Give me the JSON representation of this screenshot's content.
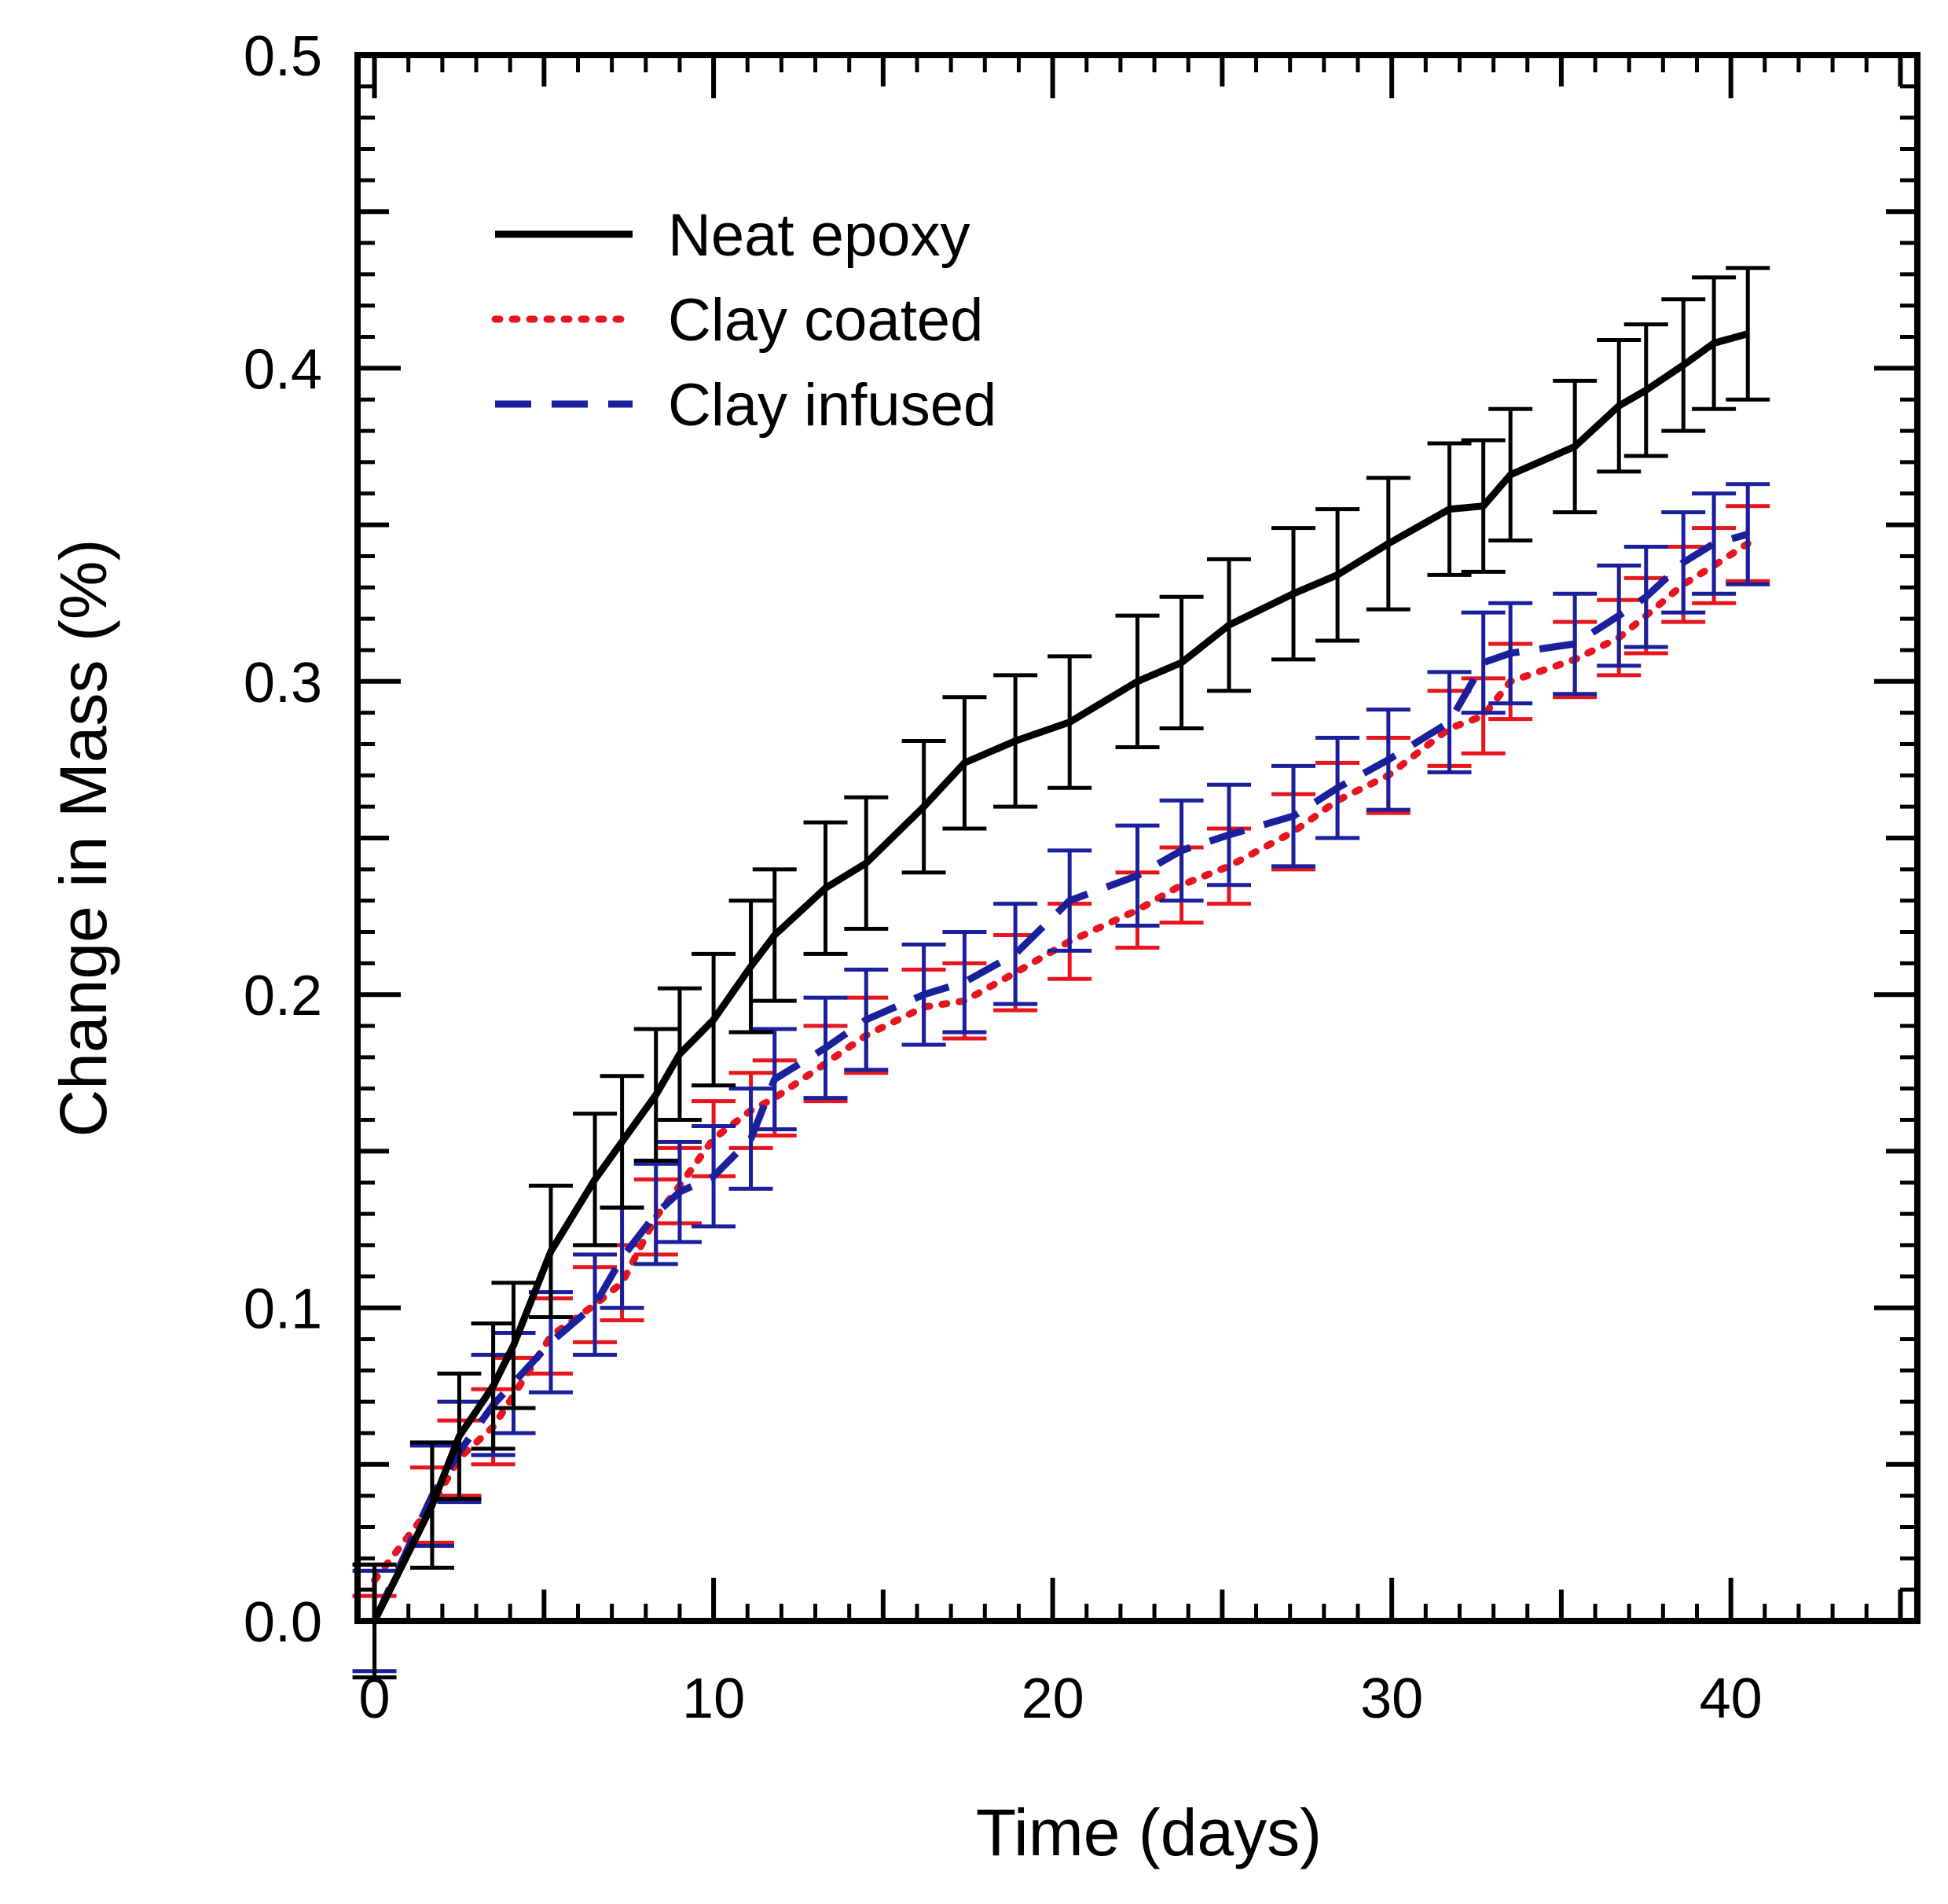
{
  "chart_data": {
    "type": "line",
    "xlabel": "Time (days)",
    "ylabel": "Change in Mass (%)",
    "xlim": [
      -0.5,
      45.5
    ],
    "ylim": [
      0,
      0.5
    ],
    "x_ticks": [
      0,
      10,
      20,
      30,
      40
    ],
    "x_tick_labels": [
      "0",
      "10",
      "20",
      "30",
      "40"
    ],
    "y_ticks": [
      0,
      0.1,
      0.2,
      0.3,
      0.4,
      0.5
    ],
    "y_tick_labels": [
      "0.0",
      "0.1",
      "0.2",
      "0.3",
      "0.4",
      "0.5"
    ],
    "grid": false,
    "legend_position": "top-left",
    "series": [
      {
        "name": "Neat epoxy",
        "color": "#000000",
        "style": "solid",
        "points": [
          {
            "x": 0,
            "y": 0,
            "err": 0.018
          },
          {
            "x": 1.7,
            "y": 0.037,
            "err": 0.02
          },
          {
            "x": 2.5,
            "y": 0.059,
            "err": 0.02
          },
          {
            "x": 3.5,
            "y": 0.075,
            "err": 0.02
          },
          {
            "x": 4.1,
            "y": 0.088,
            "err": 0.02
          },
          {
            "x": 5.2,
            "y": 0.118,
            "err": 0.021
          },
          {
            "x": 6.5,
            "y": 0.141,
            "err": 0.021
          },
          {
            "x": 7.3,
            "y": 0.153,
            "err": 0.021
          },
          {
            "x": 8.3,
            "y": 0.168,
            "err": 0.021
          },
          {
            "x": 9.0,
            "y": 0.181,
            "err": 0.021
          },
          {
            "x": 10.0,
            "y": 0.192,
            "err": 0.021
          },
          {
            "x": 11.1,
            "y": 0.209,
            "err": 0.021
          },
          {
            "x": 11.8,
            "y": 0.219,
            "err": 0.021
          },
          {
            "x": 13.3,
            "y": 0.234,
            "err": 0.021
          },
          {
            "x": 14.5,
            "y": 0.242,
            "err": 0.021
          },
          {
            "x": 16.2,
            "y": 0.26,
            "err": 0.021
          },
          {
            "x": 17.4,
            "y": 0.274,
            "err": 0.021
          },
          {
            "x": 18.9,
            "y": 0.281,
            "err": 0.021
          },
          {
            "x": 20.5,
            "y": 0.287,
            "err": 0.021
          },
          {
            "x": 22.5,
            "y": 0.3,
            "err": 0.021
          },
          {
            "x": 23.8,
            "y": 0.306,
            "err": 0.021
          },
          {
            "x": 25.2,
            "y": 0.318,
            "err": 0.021
          },
          {
            "x": 27.1,
            "y": 0.328,
            "err": 0.021
          },
          {
            "x": 28.4,
            "y": 0.334,
            "err": 0.021
          },
          {
            "x": 29.9,
            "y": 0.344,
            "err": 0.021
          },
          {
            "x": 31.7,
            "y": 0.355,
            "err": 0.021
          },
          {
            "x": 32.7,
            "y": 0.356,
            "err": 0.021
          },
          {
            "x": 33.5,
            "y": 0.366,
            "err": 0.021
          },
          {
            "x": 35.4,
            "y": 0.375,
            "err": 0.021
          },
          {
            "x": 36.7,
            "y": 0.388,
            "err": 0.021
          },
          {
            "x": 37.5,
            "y": 0.393,
            "err": 0.021
          },
          {
            "x": 38.6,
            "y": 0.401,
            "err": 0.021
          },
          {
            "x": 39.5,
            "y": 0.408,
            "err": 0.021
          },
          {
            "x": 40.5,
            "y": 0.411,
            "err": 0.021
          }
        ]
      },
      {
        "name": "Clay coated",
        "color": "#e8141e",
        "style": "dotted",
        "points": [
          {
            "x": 0,
            "y": 0.013,
            "err": 0.005
          },
          {
            "x": 1.7,
            "y": 0.037,
            "err": 0.012
          },
          {
            "x": 2.5,
            "y": 0.052,
            "err": 0.012
          },
          {
            "x": 3.5,
            "y": 0.062,
            "err": 0.012
          },
          {
            "x": 4.1,
            "y": 0.072,
            "err": 0.012
          },
          {
            "x": 5.2,
            "y": 0.091,
            "err": 0.012
          },
          {
            "x": 6.5,
            "y": 0.101,
            "err": 0.012
          },
          {
            "x": 7.3,
            "y": 0.108,
            "err": 0.012
          },
          {
            "x": 8.3,
            "y": 0.129,
            "err": 0.012
          },
          {
            "x": 9.0,
            "y": 0.139,
            "err": 0.012
          },
          {
            "x": 10.0,
            "y": 0.154,
            "err": 0.012
          },
          {
            "x": 11.1,
            "y": 0.163,
            "err": 0.012
          },
          {
            "x": 11.8,
            "y": 0.167,
            "err": 0.012
          },
          {
            "x": 13.3,
            "y": 0.178,
            "err": 0.012
          },
          {
            "x": 14.5,
            "y": 0.187,
            "err": 0.012
          },
          {
            "x": 16.2,
            "y": 0.196,
            "err": 0.012
          },
          {
            "x": 17.4,
            "y": 0.198,
            "err": 0.012
          },
          {
            "x": 18.9,
            "y": 0.207,
            "err": 0.012
          },
          {
            "x": 20.5,
            "y": 0.217,
            "err": 0.012
          },
          {
            "x": 22.5,
            "y": 0.227,
            "err": 0.012
          },
          {
            "x": 23.8,
            "y": 0.235,
            "err": 0.012
          },
          {
            "x": 25.2,
            "y": 0.241,
            "err": 0.012
          },
          {
            "x": 27.1,
            "y": 0.252,
            "err": 0.012
          },
          {
            "x": 28.4,
            "y": 0.262,
            "err": 0.012
          },
          {
            "x": 29.9,
            "y": 0.27,
            "err": 0.012
          },
          {
            "x": 31.7,
            "y": 0.285,
            "err": 0.012
          },
          {
            "x": 32.7,
            "y": 0.289,
            "err": 0.012
          },
          {
            "x": 33.5,
            "y": 0.3,
            "err": 0.012
          },
          {
            "x": 35.4,
            "y": 0.307,
            "err": 0.012
          },
          {
            "x": 36.7,
            "y": 0.314,
            "err": 0.012
          },
          {
            "x": 37.5,
            "y": 0.321,
            "err": 0.012
          },
          {
            "x": 38.6,
            "y": 0.331,
            "err": 0.012
          },
          {
            "x": 39.5,
            "y": 0.337,
            "err": 0.012
          },
          {
            "x": 40.5,
            "y": 0.344,
            "err": 0.012
          }
        ]
      },
      {
        "name": "Clay infused",
        "color": "#1a1f9c",
        "style": "dashed",
        "points": [
          {
            "x": 0,
            "y": 0,
            "err": 0.016
          },
          {
            "x": 1.7,
            "y": 0.04,
            "err": 0.016
          },
          {
            "x": 2.5,
            "y": 0.054,
            "err": 0.016
          },
          {
            "x": 3.5,
            "y": 0.069,
            "err": 0.016
          },
          {
            "x": 4.1,
            "y": 0.076,
            "err": 0.016
          },
          {
            "x": 5.2,
            "y": 0.089,
            "err": 0.016
          },
          {
            "x": 6.5,
            "y": 0.101,
            "err": 0.016
          },
          {
            "x": 7.3,
            "y": 0.116,
            "err": 0.016
          },
          {
            "x": 8.3,
            "y": 0.13,
            "err": 0.016
          },
          {
            "x": 9.0,
            "y": 0.137,
            "err": 0.016
          },
          {
            "x": 10.0,
            "y": 0.142,
            "err": 0.016
          },
          {
            "x": 11.1,
            "y": 0.154,
            "err": 0.016
          },
          {
            "x": 11.8,
            "y": 0.173,
            "err": 0.016
          },
          {
            "x": 13.3,
            "y": 0.183,
            "err": 0.016
          },
          {
            "x": 14.5,
            "y": 0.192,
            "err": 0.016
          },
          {
            "x": 16.2,
            "y": 0.2,
            "err": 0.016
          },
          {
            "x": 17.4,
            "y": 0.204,
            "err": 0.016
          },
          {
            "x": 18.9,
            "y": 0.213,
            "err": 0.016
          },
          {
            "x": 20.5,
            "y": 0.23,
            "err": 0.016
          },
          {
            "x": 22.5,
            "y": 0.238,
            "err": 0.016
          },
          {
            "x": 23.8,
            "y": 0.246,
            "err": 0.016
          },
          {
            "x": 25.2,
            "y": 0.251,
            "err": 0.016
          },
          {
            "x": 27.1,
            "y": 0.257,
            "err": 0.016
          },
          {
            "x": 28.4,
            "y": 0.266,
            "err": 0.016
          },
          {
            "x": 29.9,
            "y": 0.275,
            "err": 0.016
          },
          {
            "x": 31.7,
            "y": 0.287,
            "err": 0.016
          },
          {
            "x": 32.7,
            "y": 0.306,
            "err": 0.016
          },
          {
            "x": 33.5,
            "y": 0.309,
            "err": 0.016
          },
          {
            "x": 35.4,
            "y": 0.312,
            "err": 0.016
          },
          {
            "x": 36.7,
            "y": 0.321,
            "err": 0.016
          },
          {
            "x": 37.5,
            "y": 0.327,
            "err": 0.016
          },
          {
            "x": 38.6,
            "y": 0.338,
            "err": 0.016
          },
          {
            "x": 39.5,
            "y": 0.344,
            "err": 0.016
          },
          {
            "x": 40.5,
            "y": 0.347,
            "err": 0.016
          }
        ]
      }
    ]
  }
}
